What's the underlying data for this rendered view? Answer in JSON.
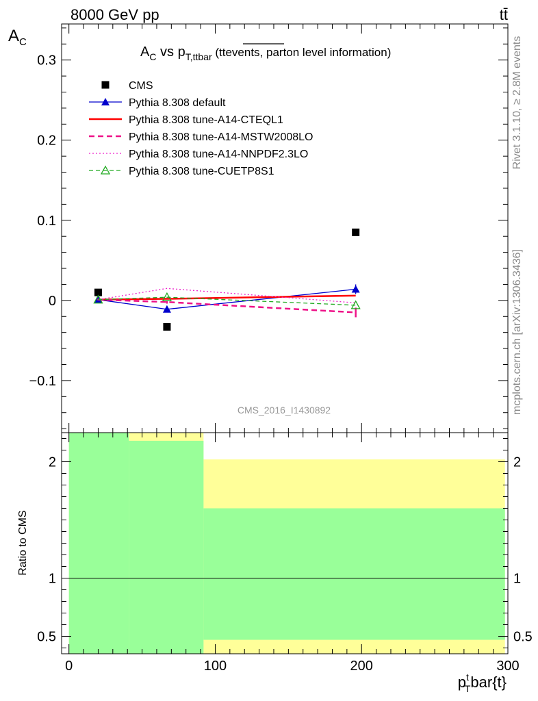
{
  "header": {
    "left": "8000 GeV pp",
    "right": "tt̄"
  },
  "side_labels": {
    "rivet": "Rivet 3.1.10, ≥ 2.8M events",
    "mcplots": "mcplots.cern.ch [arXiv:1306.3436]"
  },
  "chart_data": [
    {
      "type": "scatter",
      "panel": "main",
      "title": "A_C vs p_T,ttbar (tt̄ events, parton level information)",
      "title_parts": {
        "a": "A",
        "a_sub": "C",
        "vs": " vs p",
        "p_sub": "T,ttbar",
        "paren_open": " (tt",
        "overlined": "events,",
        "rest": " parton level information)"
      },
      "ylabel": "A",
      "ylabel_sub": "C",
      "xlim": [
        -5,
        300
      ],
      "ylim": [
        -0.165,
        0.345
      ],
      "x_ticks": [
        0,
        100,
        200,
        300
      ],
      "y_ticks": [
        -0.1,
        0,
        0.1,
        0.2,
        0.3
      ],
      "y_tick_labels": [
        "−0.1",
        "0",
        "0.1",
        "0.2",
        "0.3"
      ],
      "watermark": "CMS_2016_I1430892",
      "legend_position": "top-left",
      "series": [
        {
          "name": "CMS",
          "color": "#000000",
          "style": "marker-only",
          "marker": "square",
          "x": [
            20,
            67,
            196
          ],
          "y": [
            0.01,
            -0.033,
            0.085
          ]
        },
        {
          "name": "Pythia 8.308 default",
          "color": "#0000cc",
          "style": "solid",
          "marker": "triangle",
          "x": [
            20,
            67,
            196
          ],
          "y": [
            0.001,
            -0.011,
            0.014
          ],
          "yerr": [
            0.002,
            0.003,
            0.006
          ]
        },
        {
          "name": "Pythia 8.308 tune-A14-CTEQL1",
          "color": "#ff0000",
          "style": "solid-thick",
          "marker": "none",
          "x": [
            20,
            67,
            196
          ],
          "y": [
            0.001,
            0.002,
            0.006
          ]
        },
        {
          "name": "Pythia 8.308 tune-A14-MSTW2008LO",
          "color": "#ee1188",
          "style": "dashed-thick",
          "marker": "none",
          "x": [
            20,
            67,
            196
          ],
          "y": [
            0.001,
            -0.002,
            -0.015
          ],
          "yerr": [
            0.001,
            0.002,
            0.006
          ]
        },
        {
          "name": "Pythia 8.308 tune-A14-NNPDF2.3LO",
          "color": "#ee22cc",
          "style": "dotted",
          "marker": "none",
          "x": [
            20,
            67,
            196
          ],
          "y": [
            0.001,
            0.015,
            -0.003
          ]
        },
        {
          "name": "Pythia 8.308 tune-CUETP8S1",
          "color": "#22aa22",
          "style": "dashed",
          "marker": "open-triangle",
          "x": [
            20,
            67,
            196
          ],
          "y": [
            0.001,
            0.004,
            -0.006
          ]
        }
      ]
    },
    {
      "type": "area",
      "panel": "ratio",
      "ylabel": "Ratio to CMS",
      "xlabel": "p_T^t bar{t}",
      "xlabel_parts": {
        "p": "p",
        "sub": "T",
        "sup": "t",
        "rest": "bar{t}"
      },
      "xlim": [
        -5,
        300
      ],
      "ylim": [
        0.35,
        2.25
      ],
      "x_ticks": [
        0,
        100,
        200,
        300
      ],
      "y_ticks": [
        0.5,
        1,
        2
      ],
      "reference_line": 1,
      "bands": [
        {
          "name": "1 sigma",
          "color": "#99ff99",
          "bins": [
            {
              "x0": 0,
              "x1": 41,
              "lo": 0.35,
              "hi": 2.25
            },
            {
              "x0": 41,
              "x1": 92,
              "lo": 0.35,
              "hi": 2.18
            },
            {
              "x0": 92,
              "x1": 298,
              "lo": 0.47,
              "hi": 1.6
            }
          ]
        },
        {
          "name": "2 sigma",
          "color": "#ffff99",
          "bins": [
            {
              "x0": 0,
              "x1": 41,
              "lo": 0.35,
              "hi": 2.25
            },
            {
              "x0": 41,
              "x1": 92,
              "lo": 0.35,
              "hi": 2.25
            },
            {
              "x0": 92,
              "x1": 298,
              "lo": 0.35,
              "hi": 2.02
            }
          ]
        }
      ]
    }
  ]
}
